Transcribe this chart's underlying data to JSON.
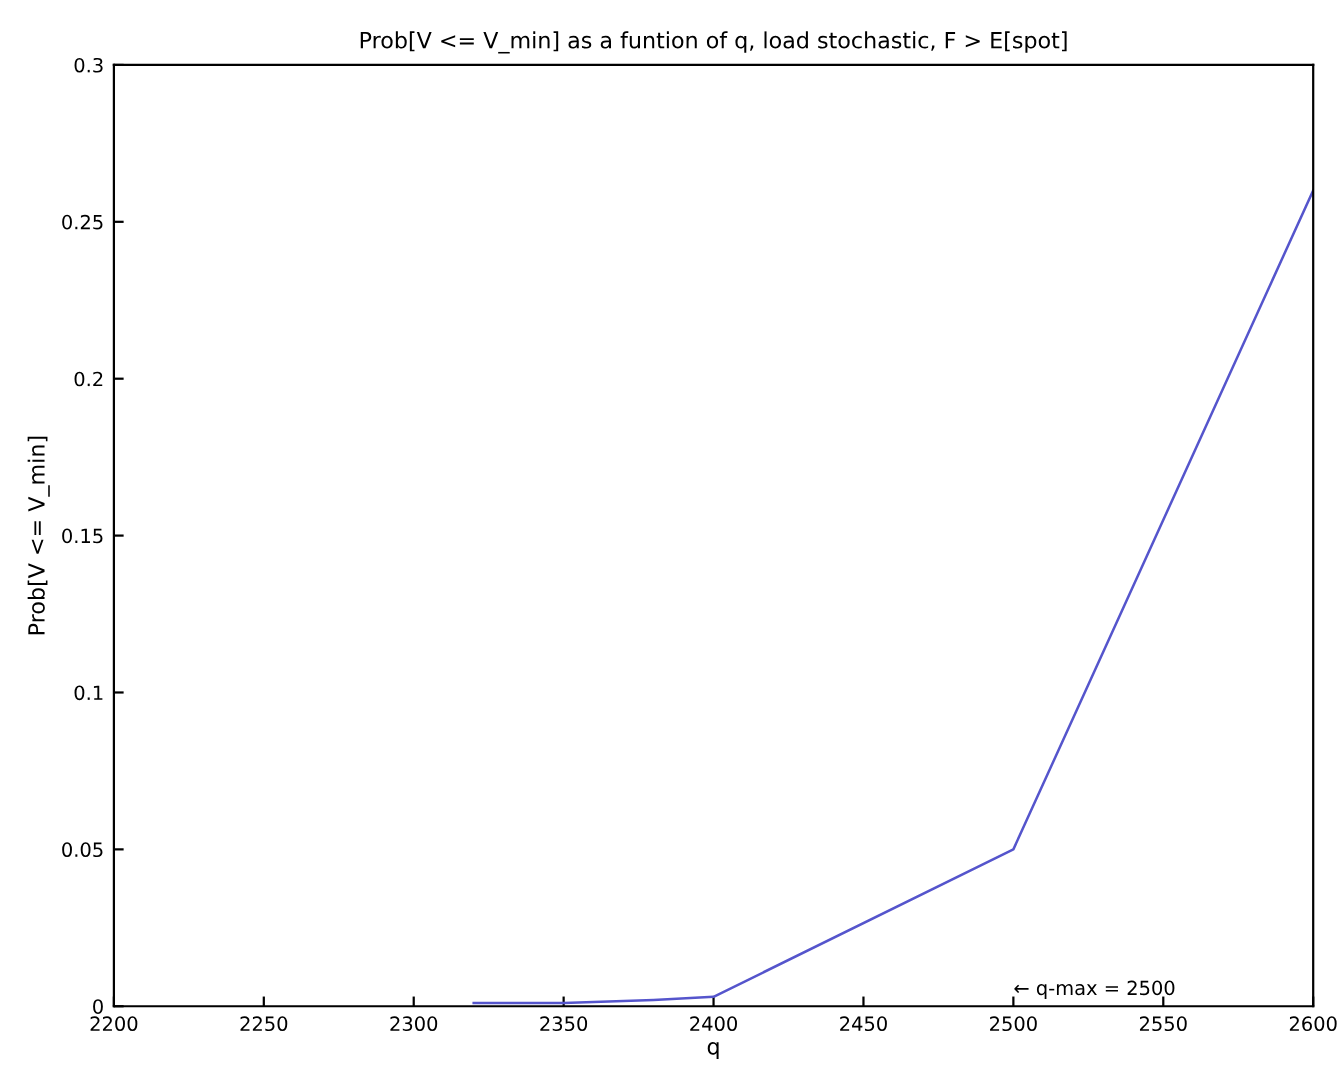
{
  "chart_data": {
    "type": "line",
    "title": "Prob[V <= V_min] as a funtion of q, load stochastic, F > E[spot]",
    "xlabel": "q",
    "ylabel": "Prob[V <= V_min]",
    "x": [
      2320,
      2350,
      2380,
      2400,
      2500,
      2600
    ],
    "series": [
      {
        "color": "#5555cc",
        "values": [
          0.001,
          0.001,
          0.002,
          0.003,
          0.05,
          0.26
        ]
      }
    ],
    "xlim": [
      2200,
      2600
    ],
    "xticks": [
      2200,
      2250,
      2300,
      2350,
      2400,
      2450,
      2500,
      2550,
      2600
    ],
    "ylim": [
      0,
      0.3
    ],
    "yticks": [
      0,
      0.05,
      0.1,
      0.15,
      0.2,
      0.25,
      0.3
    ],
    "annotations": [
      "← q-max = 2500"
    ],
    "grid": false,
    "legend": false,
    "line_style": "solid",
    "marker": "none"
  }
}
